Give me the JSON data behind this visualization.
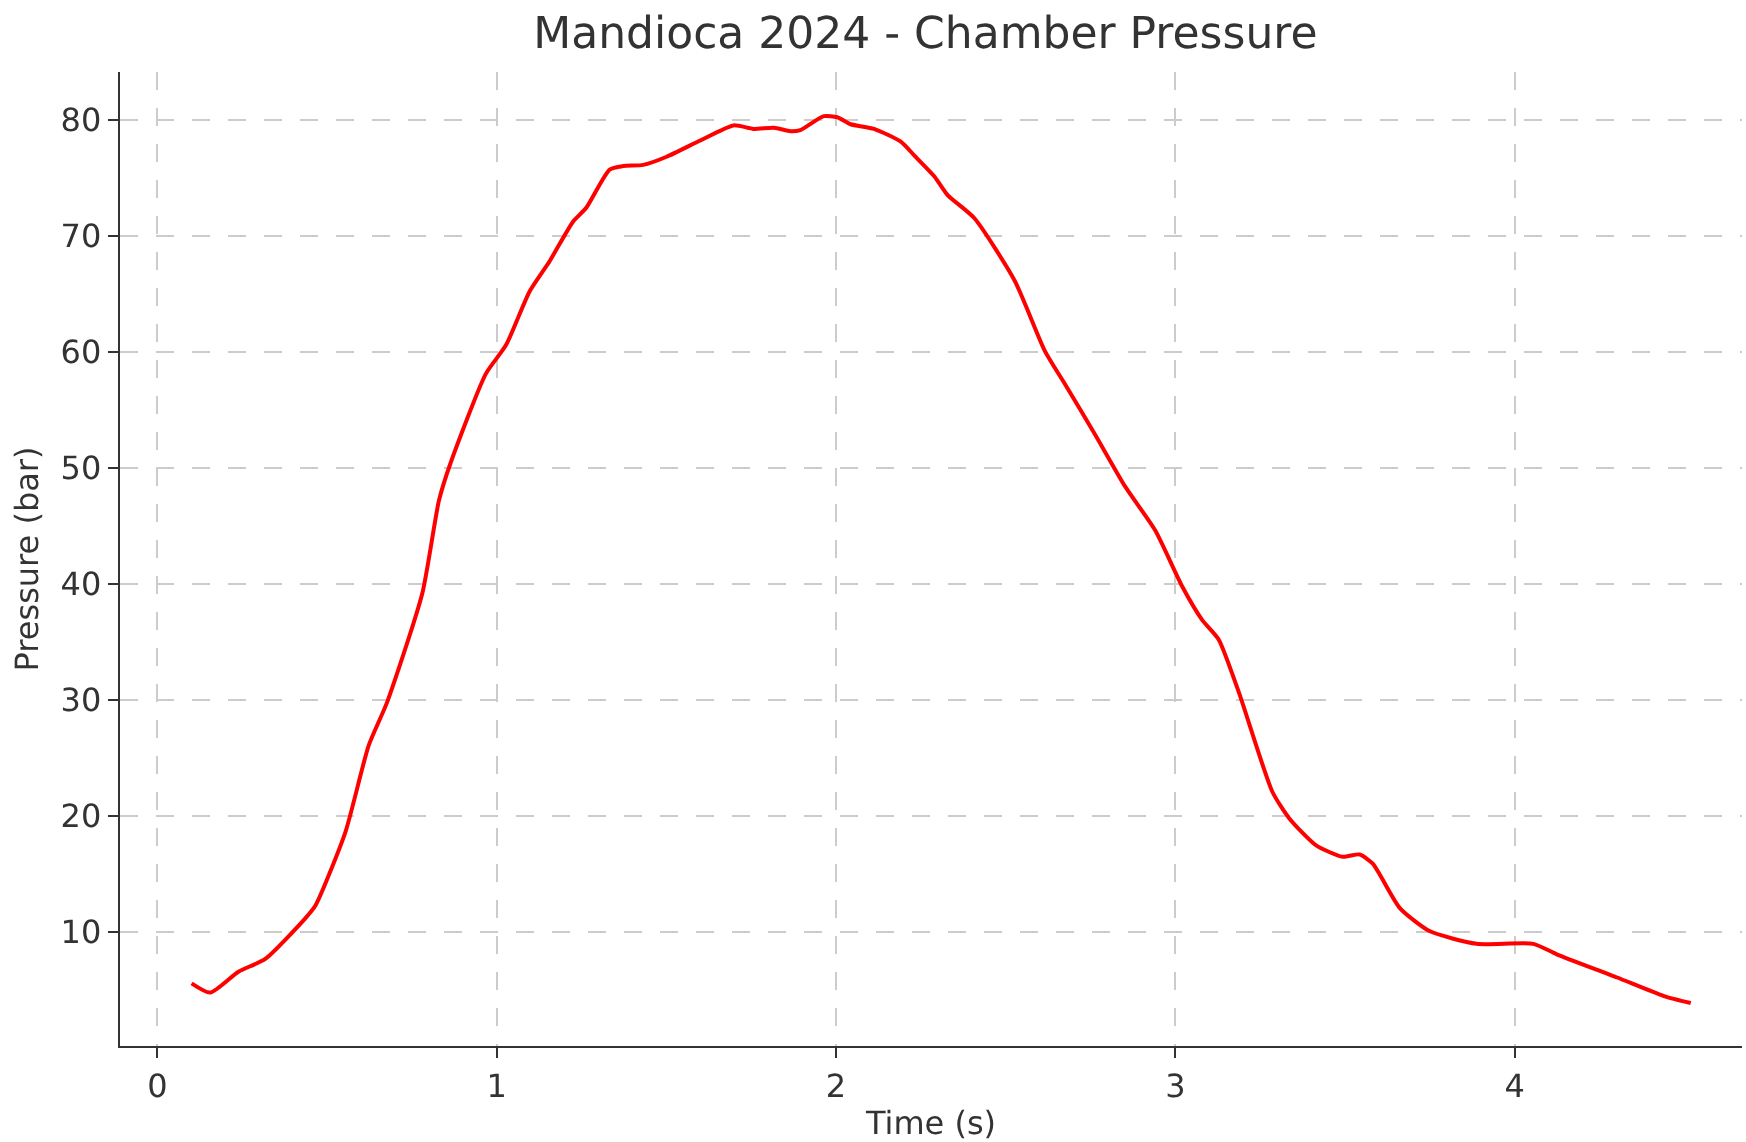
{
  "chart_data": {
    "type": "line",
    "title": "Mandioca 2024 - Chamber Pressure",
    "xlabel": "Time (s)",
    "ylabel": "Pressure (bar)",
    "xlim": [
      -0.11,
      4.67
    ],
    "ylim": [
      0.2,
      84.1
    ],
    "xticks": [
      0,
      1,
      2,
      3,
      4
    ],
    "yticks": [
      10,
      20,
      30,
      40,
      50,
      60,
      70,
      80
    ],
    "grid": true,
    "line_style": "solid",
    "series": [
      {
        "color": "#ff0000",
        "x": [
          0.101,
          0.156,
          0.239,
          0.318,
          0.436,
          0.466,
          0.554,
          0.623,
          0.677,
          0.781,
          0.83,
          0.864,
          0.968,
          1.028,
          1.097,
          1.156,
          1.225,
          1.264,
          1.333,
          1.373,
          1.432,
          1.501,
          1.6,
          1.698,
          1.757,
          1.817,
          1.866,
          1.895,
          1.964,
          2.004,
          2.043,
          2.112,
          2.191,
          2.231,
          2.29,
          2.329,
          2.408,
          2.527,
          2.615,
          2.675,
          2.763,
          2.852,
          2.941,
          3.02,
          3.079,
          3.128,
          3.188,
          3.286,
          3.336,
          3.414,
          3.493,
          3.543,
          3.582,
          3.661,
          3.749,
          3.888,
          4.055,
          4.124,
          4.302,
          4.44,
          4.519
        ],
        "values": [
          5.6,
          4.8,
          6.6,
          7.7,
          11.2,
          12.3,
          18.6,
          26.1,
          29.8,
          39.2,
          47.2,
          50.4,
          58.1,
          60.6,
          65.2,
          67.8,
          71.2,
          72.4,
          75.7,
          76.0,
          76.1,
          76.8,
          78.2,
          79.5,
          79.2,
          79.3,
          79.0,
          79.1,
          80.3,
          80.2,
          79.6,
          79.2,
          78.1,
          76.9,
          75.1,
          73.5,
          71.5,
          66.1,
          60.1,
          57.2,
          52.9,
          48.4,
          44.6,
          39.8,
          36.9,
          35.2,
          30.6,
          22.1,
          19.8,
          17.5,
          16.5,
          16.7,
          15.9,
          12.1,
          10.1,
          9.0,
          9.0,
          8.1,
          6.1,
          4.5,
          3.9
        ]
      }
    ]
  }
}
